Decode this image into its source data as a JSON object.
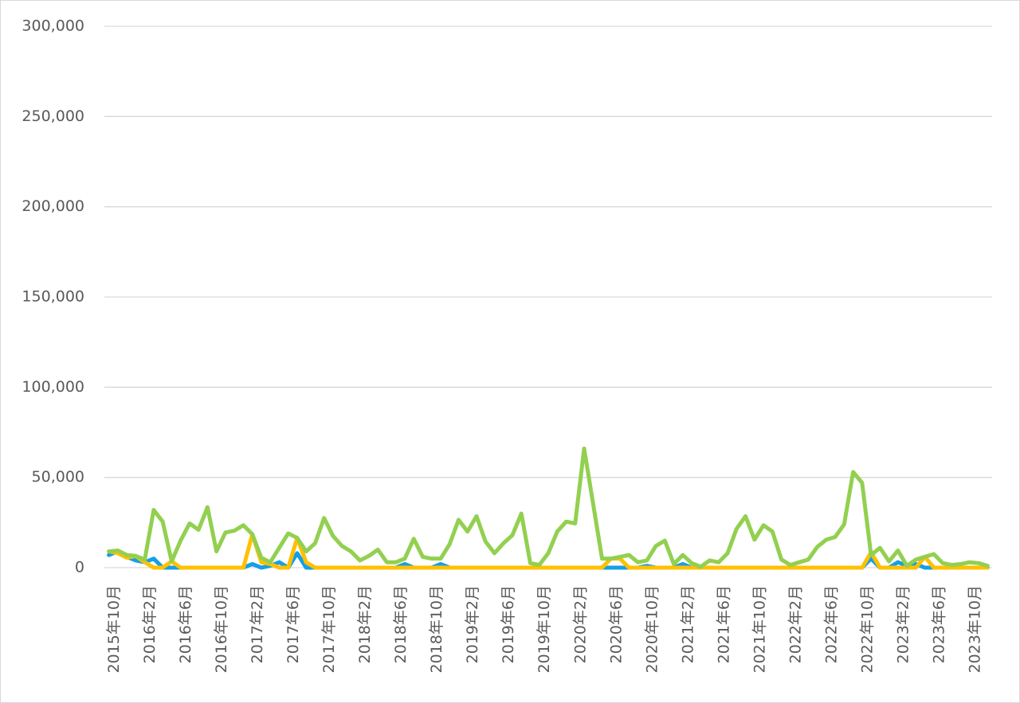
{
  "chart_data": {
    "type": "line",
    "categories": [
      "2015年10月",
      null,
      null,
      null,
      "2016年2月",
      null,
      null,
      null,
      "2016年6月",
      null,
      null,
      null,
      "2016年10月",
      null,
      null,
      null,
      "2017年2月",
      null,
      null,
      null,
      "2017年6月",
      null,
      null,
      null,
      "2017年10月",
      null,
      null,
      null,
      "2018年2月",
      null,
      null,
      null,
      "2018年6月",
      null,
      null,
      null,
      "2018年10月",
      null,
      null,
      null,
      "2019年2月",
      null,
      null,
      null,
      "2019年6月",
      null,
      null,
      null,
      "2019年10月",
      null,
      null,
      null,
      "2020年2月",
      null,
      null,
      null,
      "2020年6月",
      null,
      null,
      null,
      "2020年10月",
      null,
      null,
      null,
      "2021年2月",
      null,
      null,
      null,
      "2021年6月",
      null,
      null,
      null,
      "2021年10月",
      null,
      null,
      null,
      "2022年2月",
      null,
      null,
      null,
      "2022年6月",
      null,
      null,
      null,
      "2022年10月",
      null,
      null,
      null,
      "2023年2月",
      null,
      null,
      null,
      "2023年6月",
      null,
      null,
      null,
      "2023年10月",
      null,
      null
    ],
    "series": [
      {
        "color": "#14a0e6",
        "values": [
          7000,
          9000,
          6000,
          4000,
          3000,
          5000,
          0,
          0,
          0,
          0,
          0,
          0,
          0,
          0,
          0,
          0,
          2000,
          0,
          1000,
          3000,
          0,
          8000,
          0,
          0,
          0,
          0,
          0,
          0,
          0,
          0,
          0,
          0,
          0,
          2000,
          0,
          0,
          0,
          2000,
          0,
          0,
          0,
          0,
          0,
          0,
          0,
          0,
          0,
          0,
          0,
          0,
          0,
          0,
          0,
          0,
          0,
          0,
          0,
          0,
          0,
          0,
          1000,
          0,
          0,
          0,
          2000,
          0,
          0,
          0,
          0,
          0,
          0,
          0,
          0,
          0,
          0,
          0,
          0,
          0,
          0,
          0,
          0,
          0,
          0,
          0,
          0,
          5000,
          0,
          0,
          3000,
          1000,
          2000,
          0,
          0,
          0,
          0,
          0,
          0,
          0,
          0
        ]
      },
      {
        "color": "#ffc000",
        "values": [
          9000,
          8000,
          5500,
          6500,
          3000,
          0,
          0,
          3500,
          0,
          0,
          0,
          0,
          0,
          0,
          0,
          0,
          18500,
          3000,
          2000,
          0,
          0,
          16500,
          3000,
          0,
          0,
          0,
          0,
          0,
          0,
          0,
          0,
          0,
          0,
          0,
          0,
          0,
          0,
          0,
          0,
          0,
          0,
          0,
          0,
          0,
          0,
          0,
          0,
          0,
          0,
          0,
          0,
          0,
          0,
          0,
          0,
          0,
          5000,
          5000,
          0,
          0,
          0,
          0,
          0,
          0,
          0,
          0,
          0,
          0,
          0,
          0,
          0,
          0,
          0,
          0,
          0,
          0,
          0,
          0,
          0,
          0,
          0,
          0,
          0,
          0,
          0,
          8500,
          0,
          0,
          0,
          0,
          0,
          6000,
          0,
          0,
          0,
          0,
          0,
          0,
          0
        ]
      },
      {
        "color": "#92d050",
        "values": [
          9000,
          9500,
          7000,
          6500,
          4500,
          32000,
          25500,
          3500,
          15000,
          24500,
          21000,
          33500,
          9000,
          19500,
          20500,
          23500,
          18500,
          5500,
          3000,
          11000,
          19000,
          16500,
          9000,
          13500,
          27500,
          17500,
          12000,
          9000,
          4000,
          6500,
          10000,
          3000,
          3000,
          5000,
          16000,
          6000,
          5000,
          5000,
          13000,
          26500,
          20000,
          28500,
          14500,
          8000,
          13500,
          18000,
          30000,
          2500,
          1500,
          8000,
          20000,
          25500,
          24500,
          66000,
          35500,
          5000,
          5000,
          6000,
          7000,
          3000,
          4000,
          12000,
          15000,
          2000,
          7000,
          2500,
          500,
          4000,
          3000,
          8000,
          21500,
          28500,
          15500,
          23500,
          20000,
          4500,
          1500,
          3000,
          4500,
          11500,
          15500,
          17000,
          24000,
          53000,
          47000,
          7000,
          11000,
          3500,
          9500,
          1000,
          4500,
          6000,
          7500,
          2500,
          1500,
          2000,
          3000,
          2500,
          1000
        ]
      }
    ],
    "ylim": [
      0,
      300000
    ],
    "yticks": [
      0,
      {
        "value": 50000,
        "label": "50,000"
      },
      {
        "value": 100000,
        "label": "100,000"
      },
      {
        "value": 150000,
        "label": "150,000"
      },
      {
        "value": 200000,
        "label": "200,000"
      },
      {
        "value": 250000,
        "label": "250,000"
      },
      {
        "value": 300000,
        "label": "300,000"
      }
    ],
    "grid": true
  }
}
